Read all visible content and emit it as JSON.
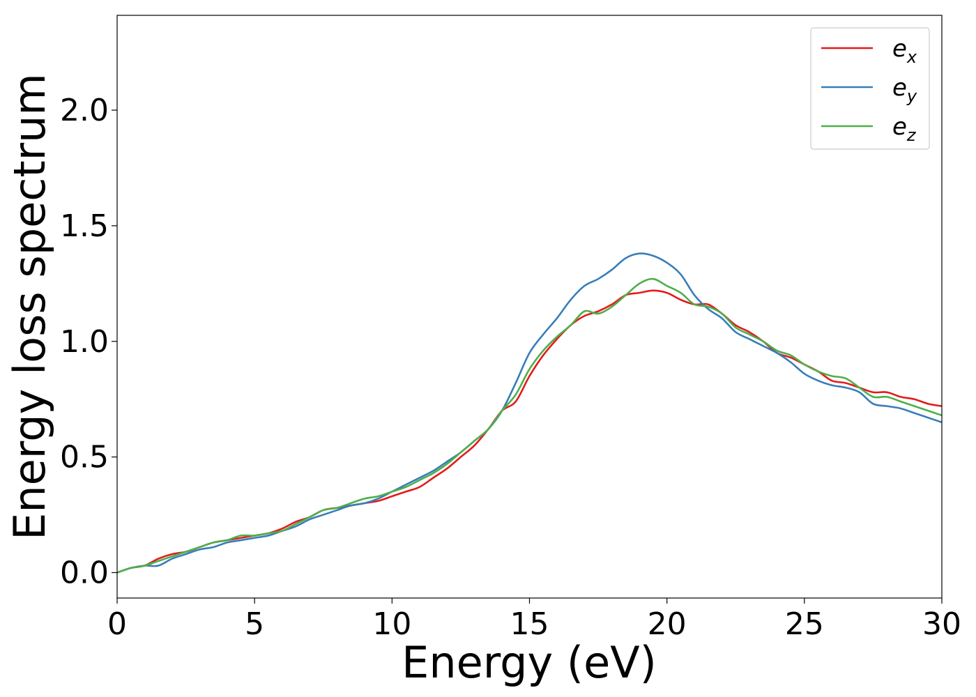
{
  "chart_data": {
    "type": "line",
    "title": "",
    "xlabel": "Energy (eV)",
    "ylabel": "Energy loss spectrum",
    "xlim": [
      0,
      30
    ],
    "ylim": [
      -0.11,
      2.41
    ],
    "xticks": [
      0,
      5,
      10,
      15,
      20,
      25,
      30
    ],
    "xtick_labels": [
      "0",
      "5",
      "10",
      "15",
      "20",
      "25",
      "30"
    ],
    "yticks": [
      0.0,
      0.5,
      1.0,
      1.5,
      2.0
    ],
    "ytick_labels": [
      "0.0",
      "0.5",
      "1.0",
      "1.5",
      "2.0"
    ],
    "grid": false,
    "legend_position": "top-right",
    "x": [
      0,
      0.5,
      1,
      1.5,
      2,
      2.5,
      3,
      3.5,
      4,
      4.5,
      5,
      5.5,
      6,
      6.5,
      7,
      7.5,
      8,
      8.5,
      9,
      9.5,
      10,
      10.5,
      11,
      11.5,
      12,
      12.5,
      13,
      13.5,
      14,
      14.5,
      15,
      15.5,
      16,
      16.5,
      17,
      17.5,
      18,
      18.5,
      19,
      19.5,
      20,
      20.5,
      21,
      21.5,
      22,
      22.5,
      23,
      23.5,
      24,
      24.5,
      25,
      25.5,
      26,
      26.5,
      27,
      27.5,
      28,
      28.5,
      29,
      29.5,
      30
    ],
    "series": [
      {
        "name": "e",
        "sub": "x",
        "color": "#e41a1c",
        "values": [
          0.0,
          0.02,
          0.03,
          0.06,
          0.08,
          0.09,
          0.11,
          0.13,
          0.14,
          0.15,
          0.16,
          0.17,
          0.19,
          0.22,
          0.24,
          0.27,
          0.28,
          0.29,
          0.3,
          0.31,
          0.33,
          0.35,
          0.37,
          0.41,
          0.45,
          0.5,
          0.55,
          0.62,
          0.7,
          0.74,
          0.85,
          0.94,
          1.01,
          1.07,
          1.11,
          1.13,
          1.16,
          1.2,
          1.21,
          1.22,
          1.21,
          1.18,
          1.16,
          1.16,
          1.12,
          1.07,
          1.04,
          1.0,
          0.95,
          0.93,
          0.9,
          0.87,
          0.83,
          0.82,
          0.8,
          0.78,
          0.78,
          0.76,
          0.75,
          0.73,
          0.72
        ]
      },
      {
        "name": "e",
        "sub": "y",
        "color": "#377eb8",
        "values": [
          0.0,
          0.02,
          0.03,
          0.03,
          0.06,
          0.08,
          0.1,
          0.11,
          0.13,
          0.14,
          0.15,
          0.16,
          0.18,
          0.2,
          0.23,
          0.25,
          0.27,
          0.29,
          0.3,
          0.32,
          0.35,
          0.38,
          0.41,
          0.44,
          0.48,
          0.52,
          0.57,
          0.62,
          0.7,
          0.82,
          0.95,
          1.03,
          1.1,
          1.18,
          1.24,
          1.27,
          1.31,
          1.36,
          1.38,
          1.37,
          1.34,
          1.29,
          1.2,
          1.14,
          1.1,
          1.04,
          1.01,
          0.98,
          0.95,
          0.91,
          0.86,
          0.83,
          0.81,
          0.8,
          0.78,
          0.73,
          0.72,
          0.71,
          0.69,
          0.67,
          0.65
        ]
      },
      {
        "name": "e",
        "sub": "z",
        "color": "#4daf4a",
        "values": [
          0.0,
          0.02,
          0.03,
          0.05,
          0.07,
          0.09,
          0.11,
          0.13,
          0.14,
          0.16,
          0.16,
          0.17,
          0.18,
          0.21,
          0.24,
          0.27,
          0.28,
          0.3,
          0.32,
          0.33,
          0.35,
          0.37,
          0.4,
          0.43,
          0.47,
          0.52,
          0.57,
          0.62,
          0.7,
          0.77,
          0.88,
          0.96,
          1.02,
          1.07,
          1.13,
          1.12,
          1.15,
          1.2,
          1.25,
          1.27,
          1.24,
          1.21,
          1.16,
          1.15,
          1.12,
          1.06,
          1.03,
          1.0,
          0.96,
          0.94,
          0.9,
          0.87,
          0.85,
          0.84,
          0.8,
          0.76,
          0.76,
          0.74,
          0.72,
          0.7,
          0.68
        ]
      }
    ]
  }
}
